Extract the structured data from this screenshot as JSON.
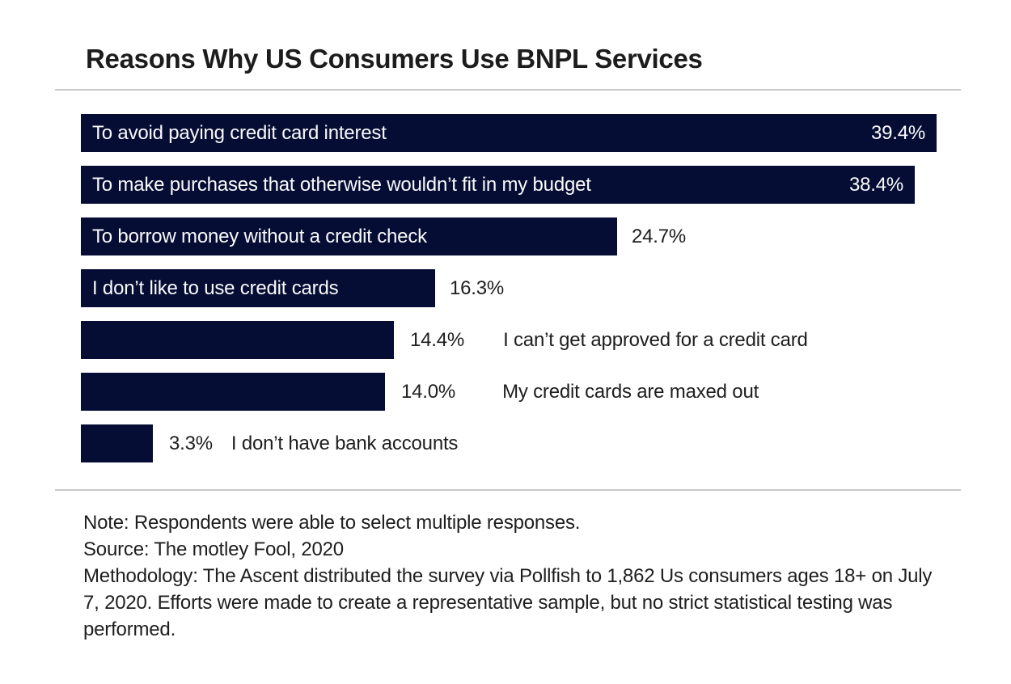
{
  "page": {
    "background": "#ffffff",
    "divider_color": "#c9c9c9",
    "title_color": "#1c1c1c",
    "text_color": "#1e1e1e"
  },
  "chart_data": {
    "type": "bar",
    "orientation": "horizontal",
    "title": "Reasons Why US Consumers Use BNPL Services",
    "categories": [
      "To avoid paying credit card interest",
      "To make purchases that otherwise wouldn’t fit in my budget",
      "To borrow money without a credit check",
      "I don’t like to use credit cards",
      "I can’t get approved for a credit card",
      "My credit cards are maxed out",
      "I don’t have bank accounts"
    ],
    "values": [
      39.4,
      38.4,
      24.7,
      16.3,
      14.4,
      14.0,
      3.3
    ],
    "value_labels": [
      "39.4%",
      "38.4%",
      "24.7%",
      "16.3%",
      "14.4%",
      "14.0%",
      "3.3%"
    ],
    "category_label_placement": [
      "inside",
      "inside",
      "inside",
      "inside",
      "outside",
      "outside",
      "outside"
    ],
    "value_label_placement": [
      "inside",
      "inside",
      "outside",
      "outside",
      "outside",
      "outside",
      "outside"
    ],
    "bar_color": "#050d35",
    "bar_text_color": "#fafafa",
    "xlim": [
      0,
      40.2
    ],
    "grid": false,
    "legend": false
  },
  "notes": {
    "note": "Note: Respondents were able to select multiple responses.",
    "source": "Source: The motley Fool, 2020",
    "methodology": "Methodology: The Ascent distributed the survey via Pollfish to 1,862 Us consumers ages 18+ on July 7, 2020. Efforts were made to create a representative sample, but no strict statistical testing was performed."
  }
}
